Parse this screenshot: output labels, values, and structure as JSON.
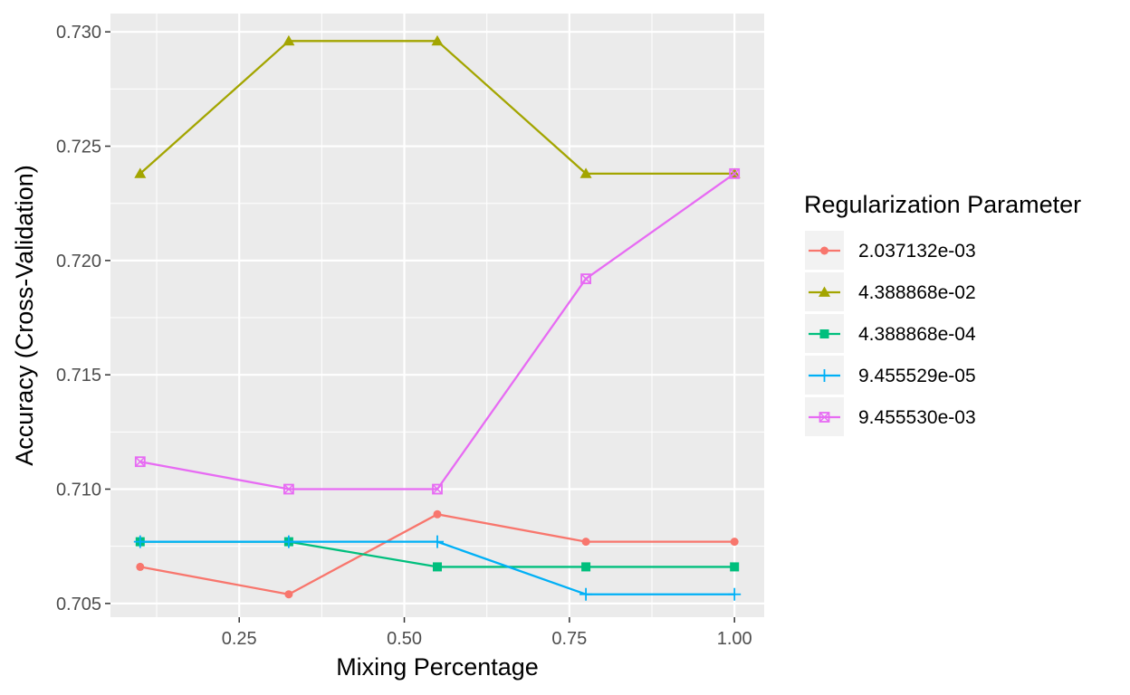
{
  "chart_data": {
    "type": "line",
    "xlabel": "Mixing Percentage",
    "ylabel": "Accuracy (Cross-Validation)",
    "x": [
      0.1,
      0.325,
      0.55,
      0.775,
      1.0
    ],
    "xlim": [
      0.055,
      1.045
    ],
    "ylim": [
      0.7044,
      0.7308
    ],
    "x_ticks": [
      {
        "value": 0.25,
        "label": "0.25"
      },
      {
        "value": 0.5,
        "label": "0.50"
      },
      {
        "value": 0.75,
        "label": "0.75"
      },
      {
        "value": 1.0,
        "label": "1.00"
      }
    ],
    "y_ticks": [
      {
        "value": 0.705,
        "label": "0.705"
      },
      {
        "value": 0.71,
        "label": "0.710"
      },
      {
        "value": 0.715,
        "label": "0.715"
      },
      {
        "value": 0.72,
        "label": "0.720"
      },
      {
        "value": 0.725,
        "label": "0.725"
      },
      {
        "value": 0.73,
        "label": "0.730"
      }
    ],
    "grid": true,
    "panel_background": "#EBEBEB",
    "legend": {
      "title": "Regularization Parameter",
      "position": "right"
    },
    "series": [
      {
        "name": "2.037132e-03",
        "color": "#F8766D",
        "marker": "circle",
        "values": [
          0.7066,
          0.7054,
          0.7089,
          0.7077,
          0.7077
        ]
      },
      {
        "name": "4.388868e-02",
        "color": "#A3A500",
        "marker": "triangle",
        "values": [
          0.7238,
          0.7296,
          0.7296,
          0.7238,
          0.7238
        ]
      },
      {
        "name": "4.388868e-04",
        "color": "#00BF7D",
        "marker": "square",
        "values": [
          0.7077,
          0.7077,
          0.7066,
          0.7066,
          0.7066
        ]
      },
      {
        "name": "9.455529e-05",
        "color": "#00B0F6",
        "marker": "plus",
        "values": [
          0.7077,
          0.7077,
          0.7077,
          0.7054,
          0.7054
        ]
      },
      {
        "name": "9.455530e-03",
        "color": "#E76BF3",
        "marker": "boxcross",
        "values": [
          0.7112,
          0.71,
          0.71,
          0.7192,
          0.7238
        ]
      }
    ]
  }
}
